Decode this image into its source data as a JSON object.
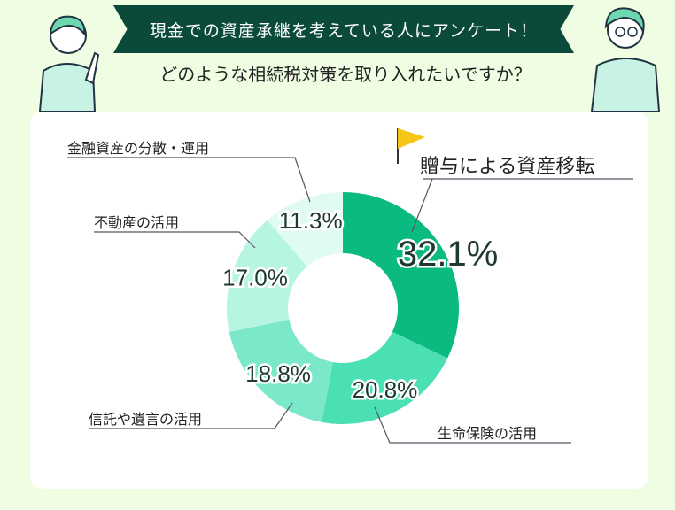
{
  "header": {
    "banner": "現金での資産承継を考えている人にアンケート！",
    "question": "どのような相続税対策を取り入れたいですか？"
  },
  "chart_data": {
    "type": "pie",
    "title": "どのような相続税対策を取り入れたいですか？",
    "categories": [
      "贈与による資産移転",
      "生命保険の活用",
      "信託や遺言の活用",
      "不動産の活用",
      "金融資産の分散・運用"
    ],
    "values": [
      32.1,
      20.8,
      18.8,
      17.0,
      11.3
    ],
    "value_labels": [
      "32.1%",
      "20.8%",
      "18.8%",
      "17.0%",
      "11.3%"
    ],
    "colors": [
      "#0bba81",
      "#4ae0b3",
      "#7ae8c9",
      "#b5f5e1",
      "#e0fbf1"
    ],
    "highlight": "贈与による資産移転"
  }
}
